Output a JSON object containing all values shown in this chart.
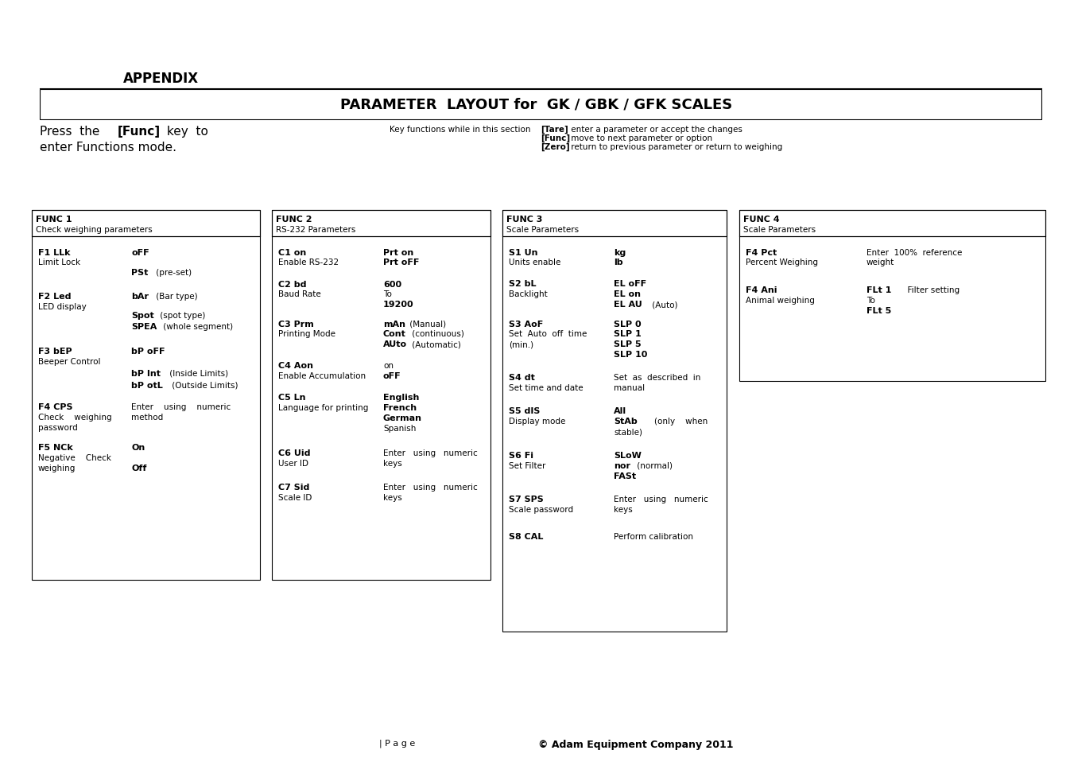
{
  "title": "PARAMETER  LAYOUT for  GK / GBK / GFK SCALES",
  "appendix": "APPENDIX",
  "footer_page": "| P a g e",
  "footer_copy": "© Adam Equipment Company 2011",
  "bg_color": "#ffffff",
  "text_color": "#000000"
}
